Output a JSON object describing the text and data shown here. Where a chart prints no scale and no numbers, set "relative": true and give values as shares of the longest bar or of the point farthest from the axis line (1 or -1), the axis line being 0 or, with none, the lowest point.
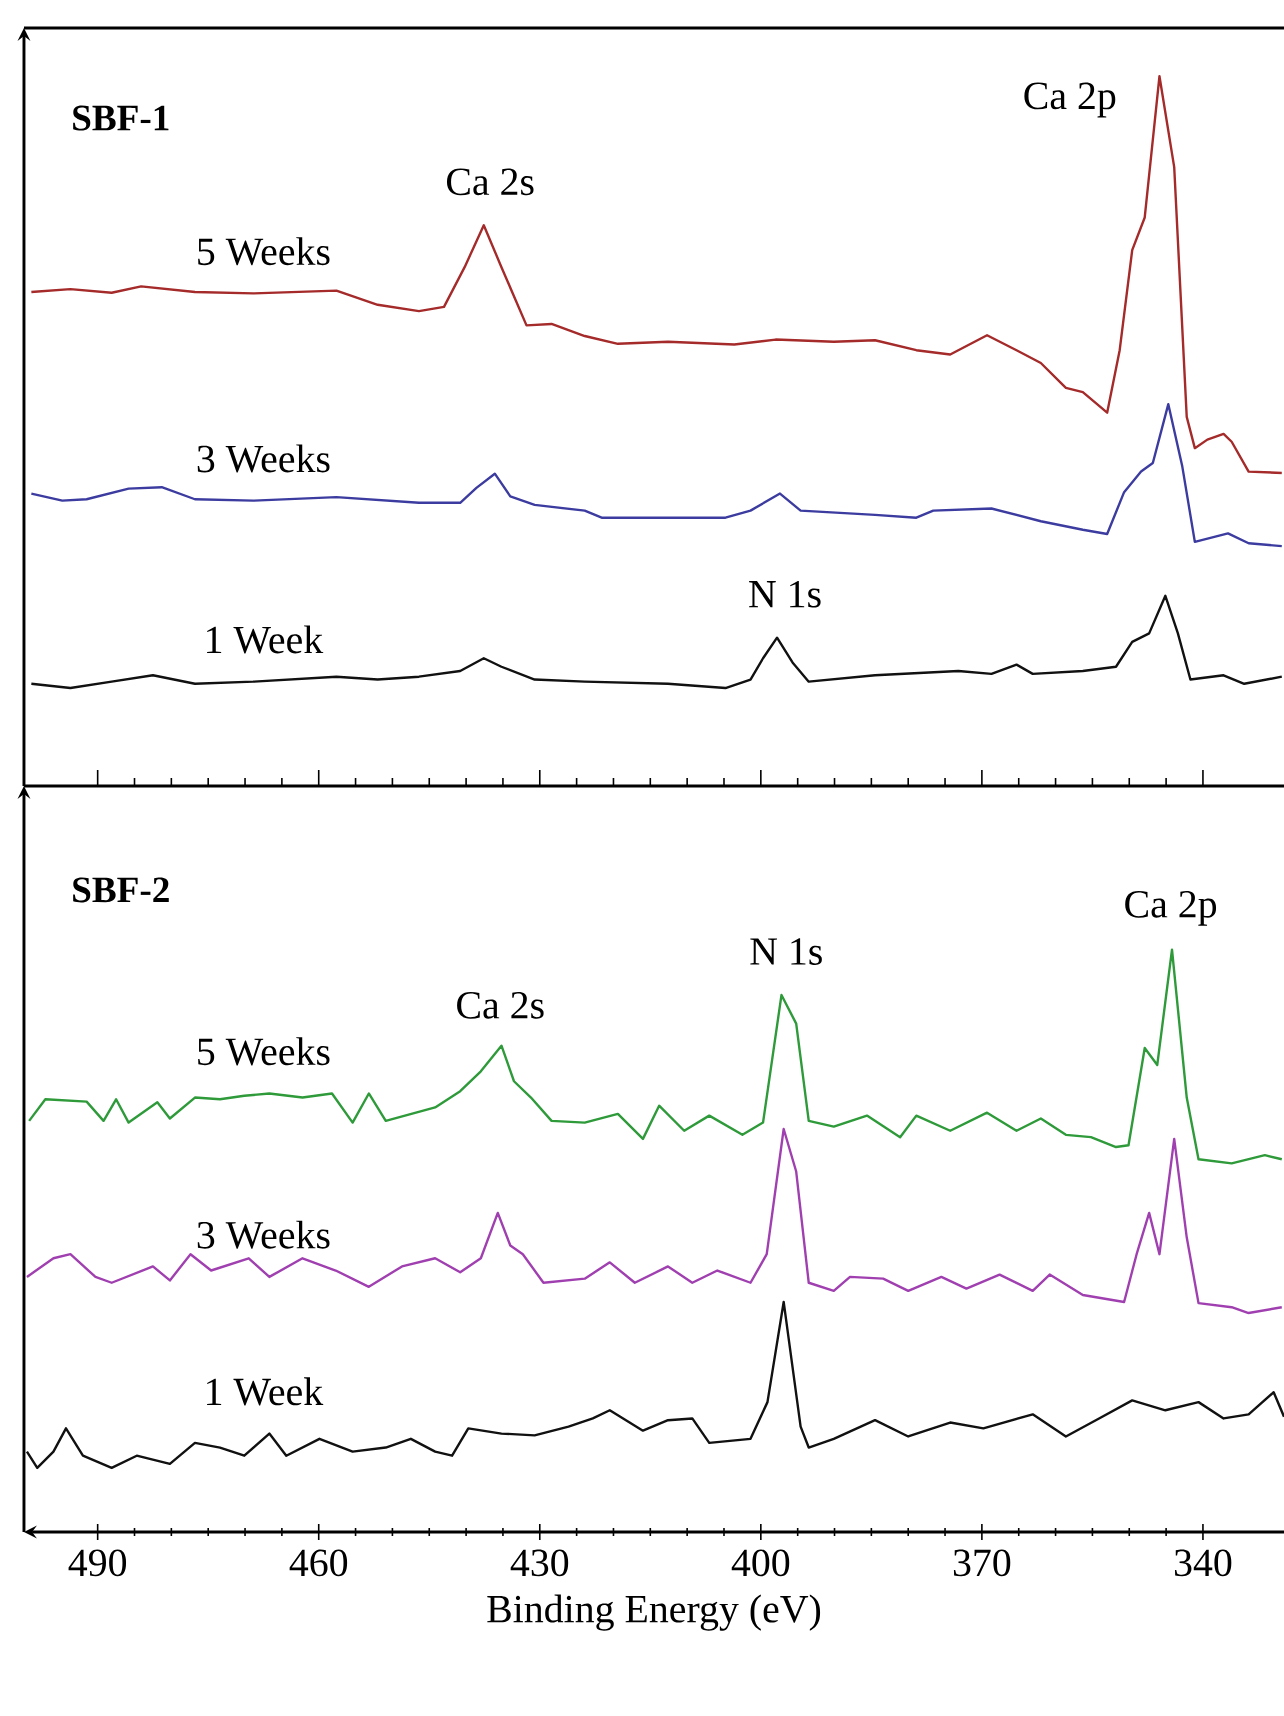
{
  "chart_data": [
    {
      "type": "line",
      "title": "SBF-1",
      "relative": true,
      "tick_labels": false,
      "xlim": [
        500,
        329
      ],
      "xticks": [
        490,
        460,
        430,
        400,
        370,
        340
      ],
      "annotations": [
        "Ca 2p",
        "Ca 2s",
        "N 1s"
      ],
      "series": [
        {
          "name": "5 Weeks",
          "color": "#a52a2a",
          "x": [
            499.0,
            493.7,
            488.1,
            484.1,
            476.8,
            468.9,
            457.6,
            452.0,
            446.4,
            443.0,
            440.2,
            437.6,
            435.2,
            431.8,
            428.4,
            423.9,
            419.4,
            412.6,
            403.6,
            398.0,
            390.1,
            384.5,
            378.9,
            374.3,
            369.3,
            365.3,
            362.0,
            358.6,
            356.3,
            353.0,
            351.3,
            349.6,
            347.9,
            345.9,
            343.9,
            342.2,
            341.1,
            339.4,
            337.2,
            336.1,
            333.8,
            329.3
          ],
          "values": [
            0.696,
            0.7,
            0.695,
            0.704,
            0.696,
            0.694,
            0.698,
            0.678,
            0.669,
            0.675,
            0.731,
            0.79,
            0.731,
            0.649,
            0.651,
            0.634,
            0.623,
            0.626,
            0.622,
            0.629,
            0.626,
            0.628,
            0.614,
            0.608,
            0.635,
            0.614,
            0.596,
            0.561,
            0.555,
            0.526,
            0.614,
            0.755,
            0.801,
            1.0,
            0.872,
            0.52,
            0.476,
            0.488,
            0.496,
            0.485,
            0.443,
            0.441
          ]
        },
        {
          "name": "3 Weeks",
          "color": "#3c3ca0",
          "x": [
            499.0,
            494.8,
            491.5,
            485.8,
            481.3,
            476.8,
            468.9,
            457.6,
            446.4,
            440.8,
            438.6,
            436.1,
            434.0,
            430.7,
            423.9,
            421.6,
            412.6,
            404.8,
            401.4,
            397.4,
            394.6,
            384.5,
            378.9,
            376.6,
            368.7,
            362.0,
            356.3,
            353.0,
            350.7,
            348.4,
            346.8,
            344.7,
            342.8,
            341.1,
            336.6,
            333.8,
            329.3
          ],
          "values": [
            0.412,
            0.402,
            0.404,
            0.419,
            0.421,
            0.404,
            0.402,
            0.407,
            0.399,
            0.399,
            0.42,
            0.44,
            0.408,
            0.396,
            0.388,
            0.378,
            0.378,
            0.378,
            0.388,
            0.412,
            0.388,
            0.382,
            0.378,
            0.388,
            0.391,
            0.373,
            0.361,
            0.355,
            0.414,
            0.443,
            0.455,
            0.538,
            0.45,
            0.344,
            0.356,
            0.342,
            0.338
          ]
        },
        {
          "name": "1 Week",
          "color": "#111111",
          "x": [
            499.0,
            493.7,
            488.1,
            482.5,
            476.8,
            468.9,
            457.6,
            452.0,
            446.4,
            440.8,
            437.6,
            435.2,
            430.7,
            423.9,
            412.6,
            404.8,
            401.4,
            399.7,
            397.8,
            395.7,
            393.5,
            384.5,
            373.2,
            368.7,
            365.3,
            363.1,
            356.3,
            351.8,
            349.6,
            347.3,
            345.1,
            343.4,
            341.7,
            337.2,
            334.4,
            329.3
          ],
          "values": [
            0.144,
            0.138,
            0.147,
            0.156,
            0.144,
            0.147,
            0.154,
            0.15,
            0.154,
            0.162,
            0.18,
            0.168,
            0.15,
            0.147,
            0.144,
            0.138,
            0.15,
            0.18,
            0.209,
            0.174,
            0.147,
            0.156,
            0.162,
            0.158,
            0.171,
            0.158,
            0.162,
            0.168,
            0.203,
            0.215,
            0.268,
            0.215,
            0.15,
            0.156,
            0.144,
            0.154
          ]
        }
      ]
    },
    {
      "type": "line",
      "title": "SBF-2",
      "relative": true,
      "tick_labels": "x",
      "xlabel": "Binding Energy (eV)",
      "xlim": [
        500,
        329
      ],
      "xticks": [
        490,
        460,
        430,
        400,
        370,
        340
      ],
      "annotations": [
        "Ca 2s",
        "N 1s",
        "Ca 2p"
      ],
      "series": [
        {
          "name": "5 Weeks",
          "color": "#2e9a3a",
          "x": [
            499.3,
            497.1,
            491.5,
            489.2,
            487.5,
            485.8,
            481.9,
            480.2,
            476.8,
            473.4,
            470.1,
            466.7,
            462.2,
            458.2,
            455.4,
            453.2,
            450.9,
            444.2,
            440.8,
            438.0,
            435.2,
            433.5,
            431.2,
            428.4,
            423.9,
            419.4,
            416.0,
            413.8,
            410.4,
            407.0,
            402.5,
            399.7,
            397.2,
            395.2,
            393.5,
            390.1,
            385.6,
            381.1,
            378.9,
            374.3,
            369.3,
            365.3,
            362.0,
            358.6,
            355.2,
            351.8,
            350.1,
            347.9,
            346.2,
            344.2,
            342.2,
            340.6,
            336.1,
            331.6,
            329.3
          ],
          "values": [
            0.706,
            0.743,
            0.739,
            0.706,
            0.743,
            0.703,
            0.738,
            0.71,
            0.746,
            0.743,
            0.749,
            0.753,
            0.746,
            0.753,
            0.703,
            0.753,
            0.706,
            0.729,
            0.757,
            0.791,
            0.835,
            0.774,
            0.746,
            0.706,
            0.703,
            0.718,
            0.675,
            0.732,
            0.689,
            0.715,
            0.682,
            0.703,
            0.922,
            0.873,
            0.706,
            0.696,
            0.715,
            0.678,
            0.715,
            0.689,
            0.72,
            0.689,
            0.71,
            0.682,
            0.678,
            0.661,
            0.664,
            0.831,
            0.802,
            1.0,
            0.746,
            0.64,
            0.633,
            0.647,
            0.64
          ]
        },
        {
          "name": "3 Weeks",
          "color": "#a040b0",
          "x": [
            499.6,
            496.0,
            493.7,
            490.3,
            488.1,
            482.5,
            480.2,
            477.4,
            474.6,
            469.5,
            466.7,
            462.2,
            457.7,
            453.2,
            448.7,
            444.2,
            440.8,
            438.0,
            435.7,
            434.0,
            432.3,
            429.5,
            423.9,
            420.5,
            417.1,
            412.6,
            409.3,
            405.9,
            401.4,
            399.2,
            396.9,
            395.2,
            393.5,
            390.1,
            387.9,
            383.4,
            380.0,
            375.5,
            372.1,
            367.6,
            363.1,
            360.8,
            356.3,
            350.7,
            349.0,
            347.3,
            345.9,
            343.9,
            342.2,
            340.6,
            336.1,
            333.8,
            329.3
          ],
          "values": [
            0.438,
            0.47,
            0.477,
            0.438,
            0.428,
            0.456,
            0.432,
            0.477,
            0.449,
            0.47,
            0.438,
            0.47,
            0.449,
            0.421,
            0.456,
            0.47,
            0.446,
            0.47,
            0.548,
            0.492,
            0.477,
            0.428,
            0.435,
            0.463,
            0.428,
            0.456,
            0.428,
            0.449,
            0.428,
            0.477,
            0.692,
            0.619,
            0.428,
            0.414,
            0.438,
            0.435,
            0.414,
            0.438,
            0.418,
            0.442,
            0.414,
            0.442,
            0.407,
            0.395,
            0.477,
            0.548,
            0.477,
            0.675,
            0.506,
            0.393,
            0.386,
            0.376,
            0.386
          ]
        },
        {
          "name": "1 Week",
          "color": "#111111",
          "x": [
            499.6,
            498.2,
            496.0,
            494.3,
            492.0,
            488.1,
            484.7,
            480.2,
            476.8,
            473.4,
            470.1,
            466.7,
            464.4,
            459.9,
            455.4,
            450.9,
            447.5,
            444.2,
            441.9,
            439.7,
            435.2,
            430.7,
            426.1,
            422.8,
            420.5,
            416.0,
            412.6,
            409.3,
            407.0,
            401.4,
            399.1,
            396.9,
            394.6,
            393.5,
            390.1,
            384.5,
            380.0,
            374.3,
            369.8,
            363.1,
            358.6,
            354.1,
            349.6,
            345.1,
            340.6,
            337.2,
            333.8,
            330.4,
            329.0
          ],
          "values": [
            0.138,
            0.11,
            0.138,
            0.178,
            0.131,
            0.11,
            0.131,
            0.117,
            0.153,
            0.145,
            0.131,
            0.169,
            0.131,
            0.16,
            0.138,
            0.145,
            0.16,
            0.138,
            0.131,
            0.178,
            0.169,
            0.166,
            0.181,
            0.195,
            0.209,
            0.174,
            0.192,
            0.195,
            0.153,
            0.16,
            0.223,
            0.395,
            0.181,
            0.145,
            0.16,
            0.192,
            0.164,
            0.188,
            0.178,
            0.202,
            0.164,
            0.195,
            0.226,
            0.209,
            0.223,
            0.195,
            0.202,
            0.24,
            0.198
          ]
        }
      ]
    }
  ]
}
